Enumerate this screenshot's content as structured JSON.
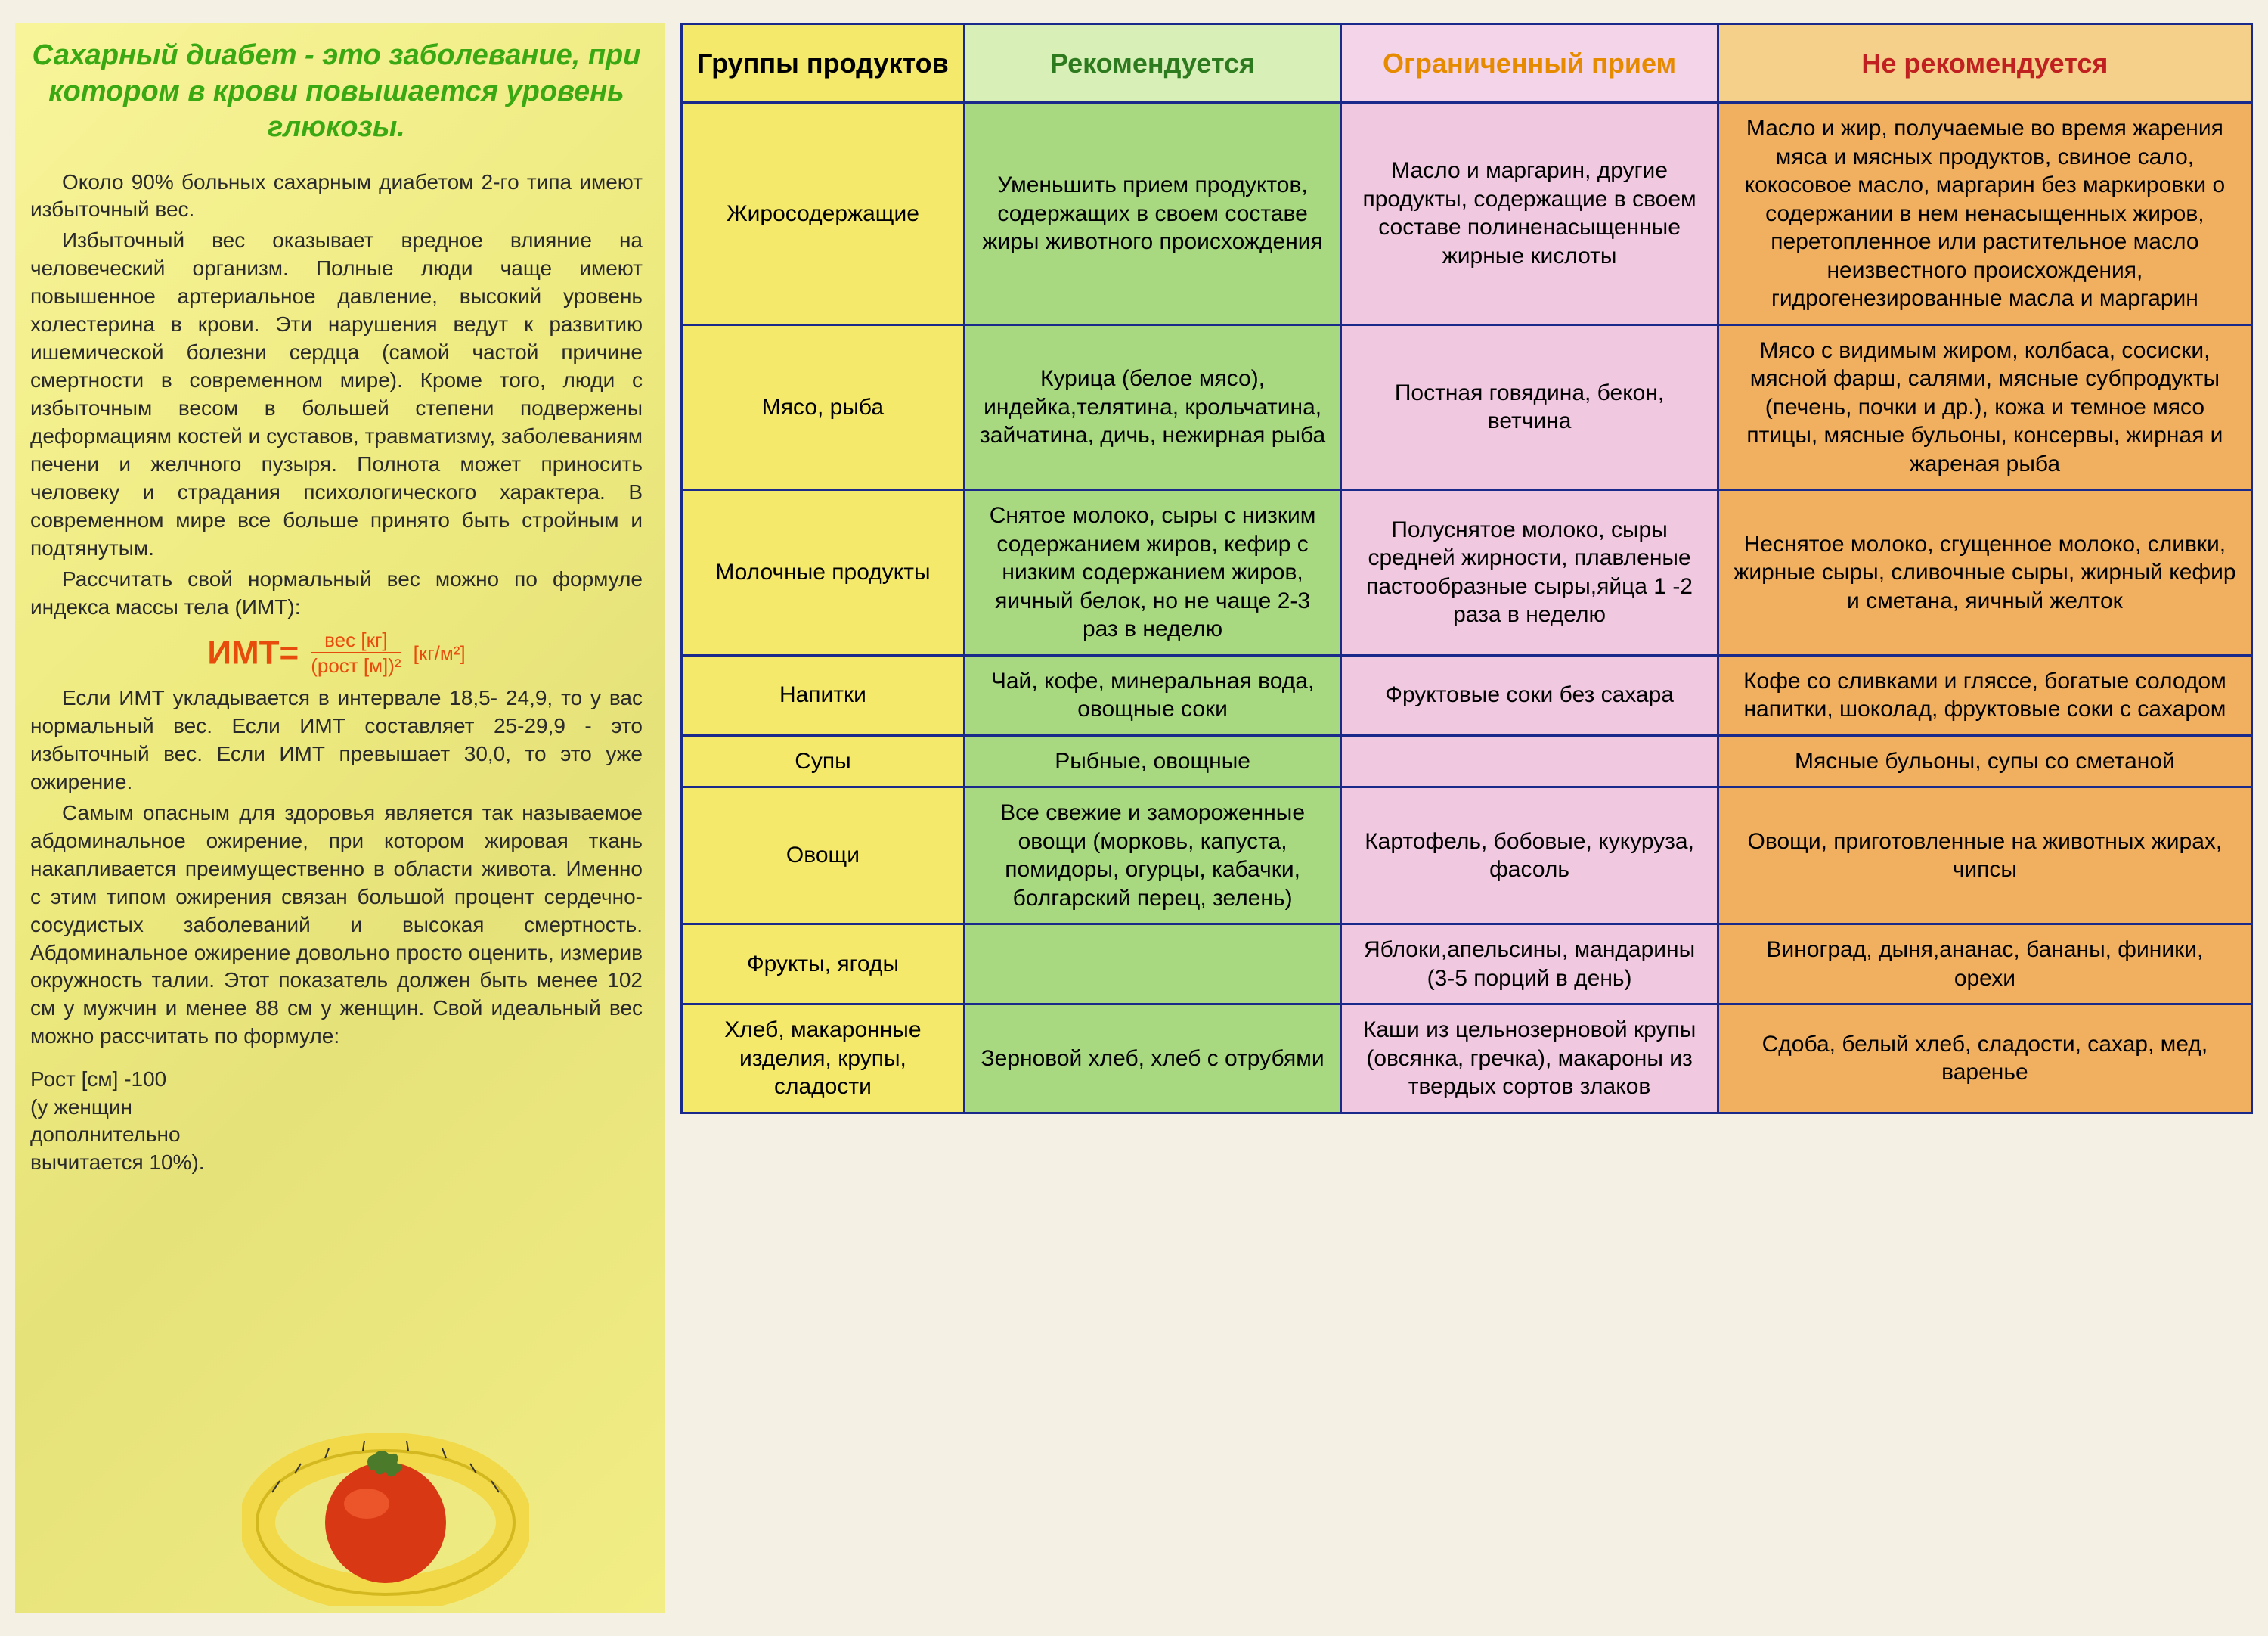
{
  "left": {
    "title_color": "#3aa813",
    "title": "Сахарный диабет - это заболевание, при котором в крови повышается уровень глюкозы.",
    "para1": "Около 90% больных сахарным диабетом 2-го типа имеют избыточный вес.",
    "para2": "Избыточный вес оказывает вредное влияние на человеческий организм. Полные люди чаще имеют повышенное артериальное давление, высокий уровень холестерина в крови. Эти нарушения ведут к развитию ишемической болезни сердца (самой частой причине смертности в современном мире). Кроме того, люди с избыточным весом в большей степени подвержены деформациям костей и суставов, травматизму, заболеваниям печени и желчного пузыря. Полнота может приносить человеку и страдания психологического характера. В современном мире все больше принято быть стройным и подтянутым.",
    "para3": "Рассчитать свой нормальный вес можно по формуле индекса массы тела (ИМТ):",
    "formula": {
      "label": "ИМТ=",
      "num": "вес [кг]",
      "den": "(рост [м])²",
      "unit": "[кг/м²]"
    },
    "para4": "Если ИМТ укладывается в интервале 18,5- 24,9, то у вас нормальный вес. Если ИМТ составляет 25-29,9 - это избыточный вес. Если ИМТ превышает 30,0, то это уже ожирение.",
    "para5": "Самым опасным для здоровья является так называемое абдоминальное ожирение, при котором жировая ткань накапливается преимущественно в области живота. Именно с этим типом ожирения связан большой процент сердечно-сосудистых заболеваний и высокая смертность. Абдоминальное ожирение довольно просто оценить, измерив окружность талии. Этот показатель должен быть менее 102 см у мужчин и менее 88 см у женщин. Свой идеальный вес можно рассчитать по формуле:",
    "footer1": "Рост [см] -100",
    "footer2": "(у женщин",
    "footer3": "дополнительно",
    "footer4": "вычитается 10%)."
  },
  "table": {
    "border_color": "#1a2a8a",
    "headers": {
      "group": {
        "text": "Группы продуктов",
        "bg": "#f4e96a",
        "color": "#000000"
      },
      "rec": {
        "text": "Рекомендуется",
        "bg": "#d8f0b8",
        "color": "#2e7a1e"
      },
      "lim": {
        "text": "Ограниченный прием",
        "bg": "#f4d4e8",
        "color": "#e68a00"
      },
      "not": {
        "text": "Не рекомендуется",
        "bg": "#f4d08a",
        "color": "#c02020"
      }
    },
    "col_bg": {
      "group": "#f4e96a",
      "rec": "#a8d880",
      "lim": "#f0c8e0",
      "not": "#f0b060"
    },
    "rows": [
      {
        "group": "Жиросодержащие",
        "rec": "Уменьшить прием продуктов, содержащих в своем составе жиры животного происхождения",
        "lim": "Масло и маргарин, другие продукты, содержащие в своем составе полиненасыщенные жирные кислоты",
        "not": "Масло и жир, получаемые во время жарения мяса и мясных продуктов, свиное сало, кокосовое масло, маргарин без маркировки о содержании в нем ненасыщенных жиров, перетопленное или растительное масло неизвестного происхождения, гидрогенезированные масла и маргарин"
      },
      {
        "group": "Мясо, рыба",
        "rec": "Курица (белое мясо), индейка,телятина, крольчатина, зайчатина, дичь, нежирная рыба",
        "lim": "Постная говядина, бекон, ветчина",
        "not": "Мясо с видимым жиром, колбаса, сосиски, мясной фарш, салями, мясные субпродукты (печень, почки и др.), кожа и темное мясо птицы, мясные бульоны, консервы, жирная и жареная рыба"
      },
      {
        "group": "Молочные продукты",
        "rec": "Снятое молоко, сыры с низким содержанием жиров, кефир с низким содержанием жиров, яичный белок, но не чаще 2-3 раз в неделю",
        "lim": "Полуснятое молоко, сыры средней жирности, плавленые пастообразные сыры,яйца 1 -2 раза в неделю",
        "not": "Неснятое молоко, сгущенное молоко, сливки, жирные сыры, сливочные сыры, жирный кефир и сметана, яичный желток"
      },
      {
        "group": "Напитки",
        "rec": "Чай, кофе, минеральная вода, овощные соки",
        "lim": "Фруктовые соки без сахара",
        "not": "Кофе со сливками и гляссе, богатые солодом напитки, шоколад, фруктовые соки с сахаром"
      },
      {
        "group": "Супы",
        "rec": "Рыбные, овощные",
        "lim": "",
        "not": "Мясные бульоны, супы со сметаной"
      },
      {
        "group": "Овощи",
        "rec": "Все свежие и замороженные овощи (морковь, капуста, помидоры, огурцы, кабачки, болгарский перец, зелень)",
        "lim": "Картофель, бобовые, кукуруза, фасоль",
        "not": "Овощи, приготовленные на животных жирах, чипсы"
      },
      {
        "group": "Фрукты, ягоды",
        "rec": "",
        "lim": "Яблоки,апельсины, мандарины (3-5 порций в день)",
        "not": "Виноград, дыня,ананас, бананы, финики, орехи"
      },
      {
        "group": "Хлеб, макаронные изделия, крупы, сладости",
        "rec": "Зерновой хлеб, хлеб с отрубями",
        "lim": "Каши из цельнозерновой крупы (овсянка, гречка), макароны из твердых сортов злаков",
        "not": "Сдоба, белый хлеб, сладости, сахар, мед, варенье"
      }
    ]
  }
}
